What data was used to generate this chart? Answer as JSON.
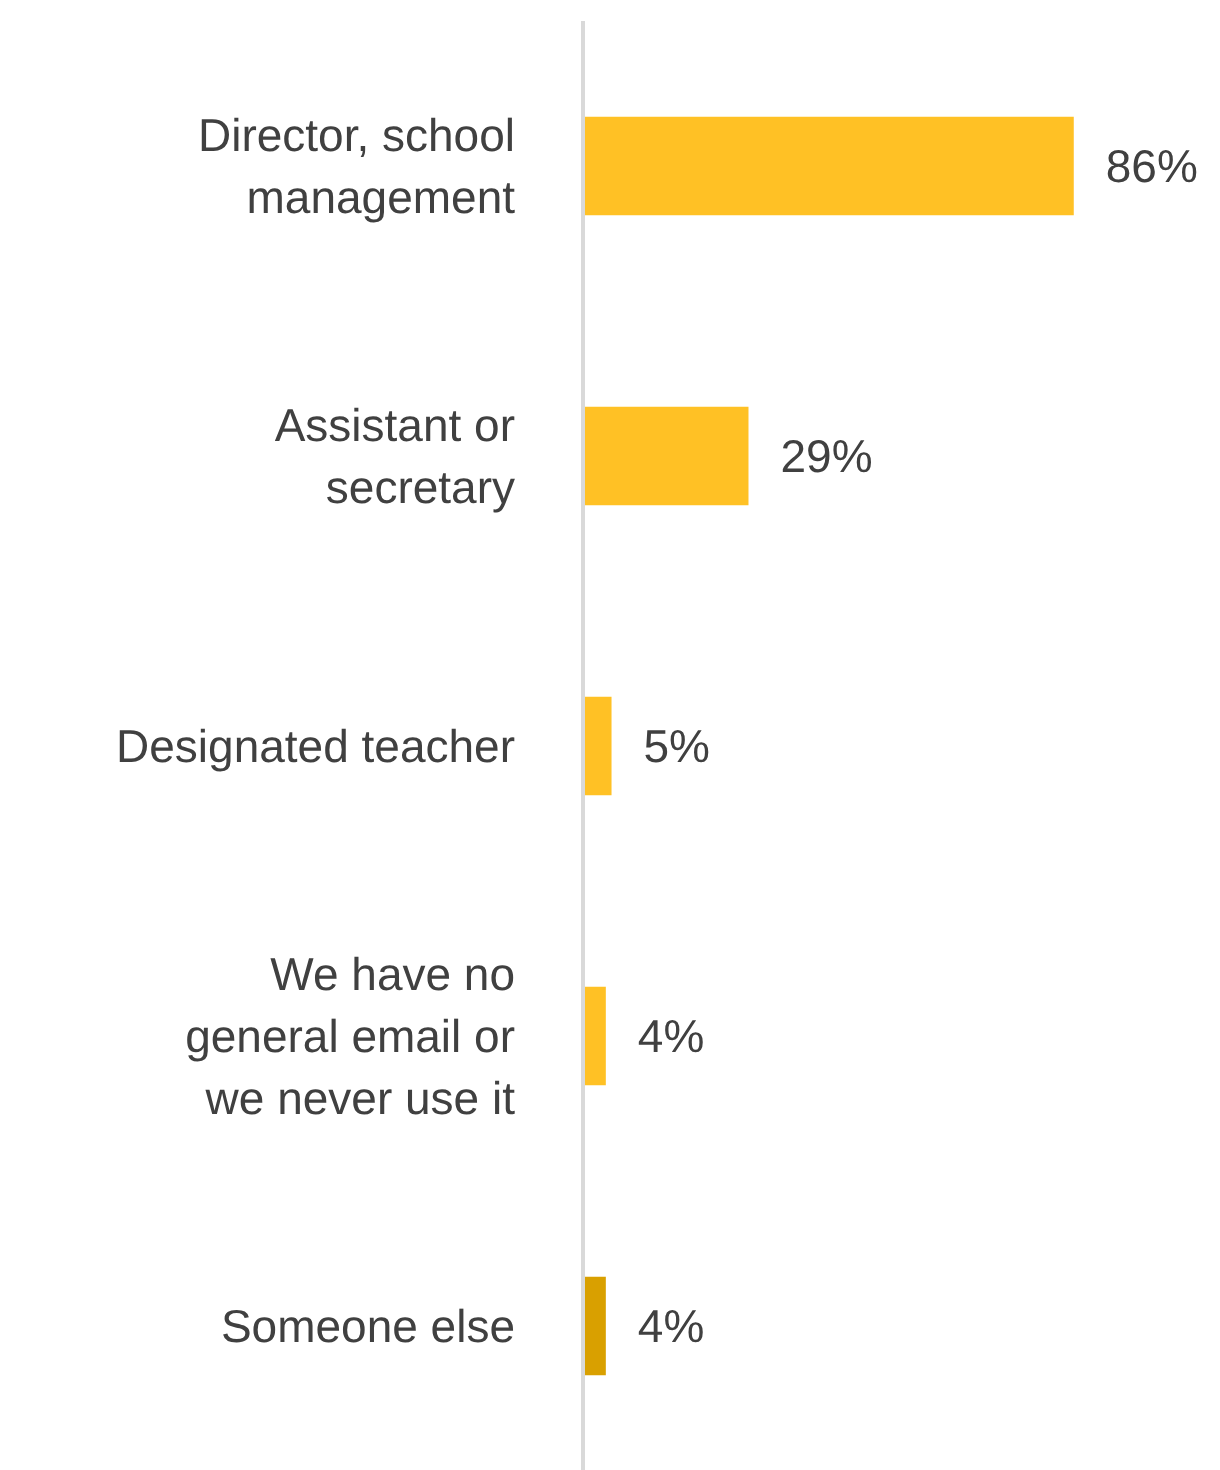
{
  "chart_data": {
    "type": "bar",
    "orientation": "horizontal",
    "categories": [
      "Director, school\nmanagement",
      "Assistant or\nsecretary",
      "Designated teacher",
      "We have no\ngeneral email or\nwe never use it",
      "Someone else"
    ],
    "values": [
      86,
      29,
      5,
      4,
      4
    ],
    "colors": [
      "#ffc125",
      "#ffc125",
      "#ffc125",
      "#ffc125",
      "#d9a000"
    ],
    "value_labels": [
      "86%",
      "29%",
      "5%",
      "4%",
      "4%"
    ],
    "tick_labels": "y"
  }
}
